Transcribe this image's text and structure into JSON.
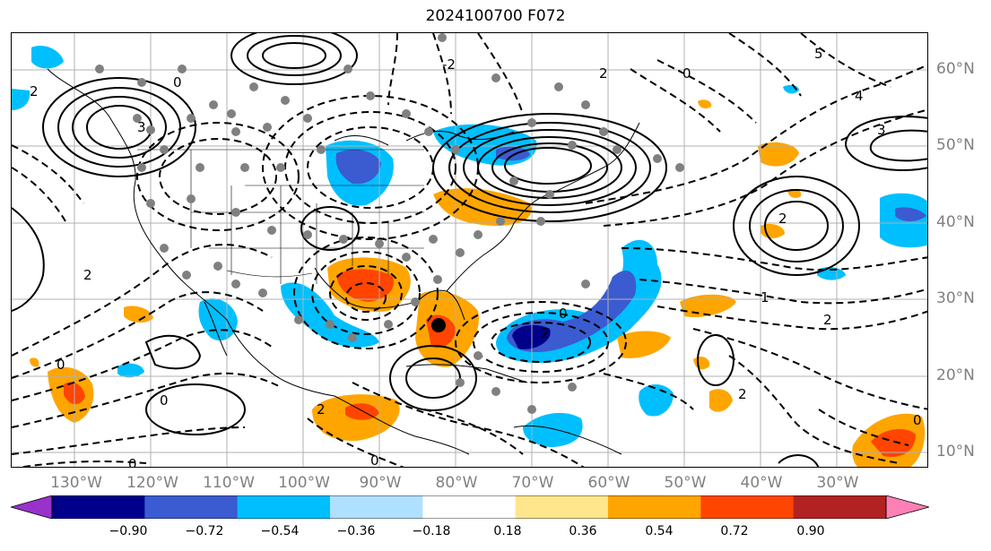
{
  "title": "2024100700 F072",
  "map": {
    "lon_labels": [
      "130°W",
      "120°W",
      "110°W",
      "100°W",
      "90°W",
      "80°W",
      "70°W",
      "60°W",
      "50°W",
      "40°W",
      "30°W"
    ],
    "lat_labels": [
      "60°N",
      "50°N",
      "40°N",
      "30°N",
      "20°N",
      "10°N"
    ],
    "contour_labels": [
      "0",
      "2",
      "3",
      "-2",
      "2",
      "4",
      "5",
      "3",
      "0",
      "2",
      "2",
      "0",
      "0",
      "2",
      "1",
      "0",
      "0",
      "2",
      "2",
      "0",
      "0",
      "2"
    ],
    "colors": {
      "neg_extreme": "#9932cc",
      "neg_090": "#00008b",
      "neg_072": "#3b5bd0",
      "neg_054": "#00bfff",
      "neg_036": "#b0e0ff",
      "pos_036": "#ffe68c",
      "pos_054": "#ffa500",
      "pos_072": "#ff4500",
      "pos_090": "#b22222",
      "pos_extreme": "#ff80b4",
      "grid": "#b0b0b0",
      "station_marker": "#808080"
    }
  },
  "colorbar": {
    "ticks": [
      "−0.90",
      "−0.72",
      "−0.54",
      "−0.36",
      "−0.18",
      "0.18",
      "0.36",
      "0.54",
      "0.72",
      "0.90"
    ],
    "segment_colors": [
      "#9932cc",
      "#00008b",
      "#3b5bd0",
      "#00bfff",
      "#b0e0ff",
      "#ffffff",
      "#ffe68c",
      "#ffa500",
      "#ff4500",
      "#b22222",
      "#ff80b4"
    ]
  }
}
